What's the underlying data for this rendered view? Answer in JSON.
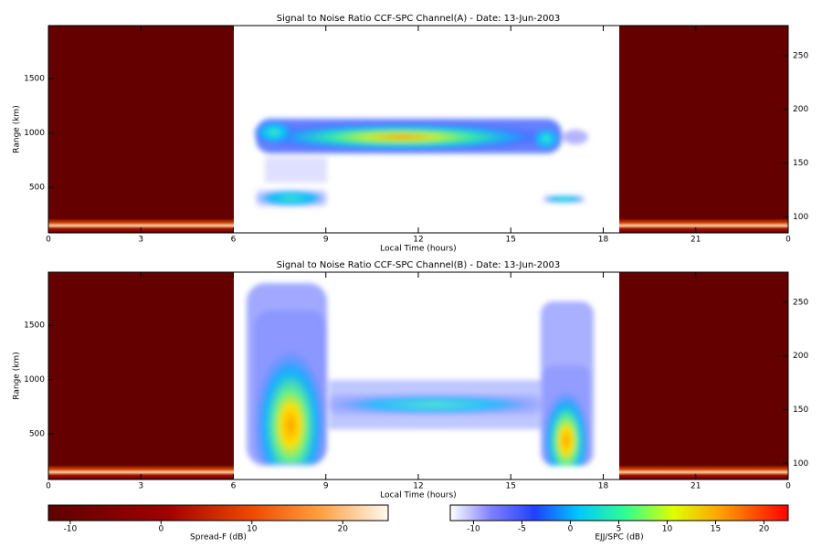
{
  "chart_data": [
    {
      "type": "heatmap",
      "title": "Signal to Noise Ratio CCF-SPC Channel(A) - Date: 13-Jun-2003",
      "xlabel": "Local Time (hours)",
      "ylabel": "Range (km)",
      "xlim": [
        0,
        24
      ],
      "xticks": [
        0,
        3,
        6,
        9,
        12,
        15,
        18,
        21,
        {
          "value": 24,
          "label": "0"
        }
      ],
      "ylim": [
        80,
        1990
      ],
      "yticks": [
        500,
        1000,
        1500
      ],
      "y2lim": [
        85,
        278
      ],
      "y2ticks": [
        100,
        150,
        200,
        250
      ]
    },
    {
      "type": "heatmap",
      "title": "Signal to Noise Ratio CCF-SPC Channel(B) - Date: 13-Jun-2003",
      "xlabel": "Local Time (hours)",
      "ylabel": "Range (km)",
      "xlim": [
        0,
        24
      ],
      "xticks": [
        0,
        3,
        6,
        9,
        12,
        15,
        18,
        21,
        {
          "value": 24,
          "label": "0"
        }
      ],
      "ylim": [
        80,
        1990
      ],
      "yticks": [
        500,
        1000,
        1500
      ],
      "y2lim": [
        85,
        278
      ],
      "y2ticks": [
        100,
        150,
        200,
        250
      ]
    }
  ],
  "colorbars": [
    {
      "label": "Spread-F (dB)",
      "lim": [
        -12.4,
        25
      ],
      "ticks": [
        -10,
        0,
        10,
        20
      ]
    },
    {
      "label": "EJJ/SPC (dB)",
      "lim": [
        -12.4,
        22.5
      ],
      "ticks": [
        -10,
        -5,
        0,
        5,
        10,
        15,
        20
      ]
    }
  ]
}
